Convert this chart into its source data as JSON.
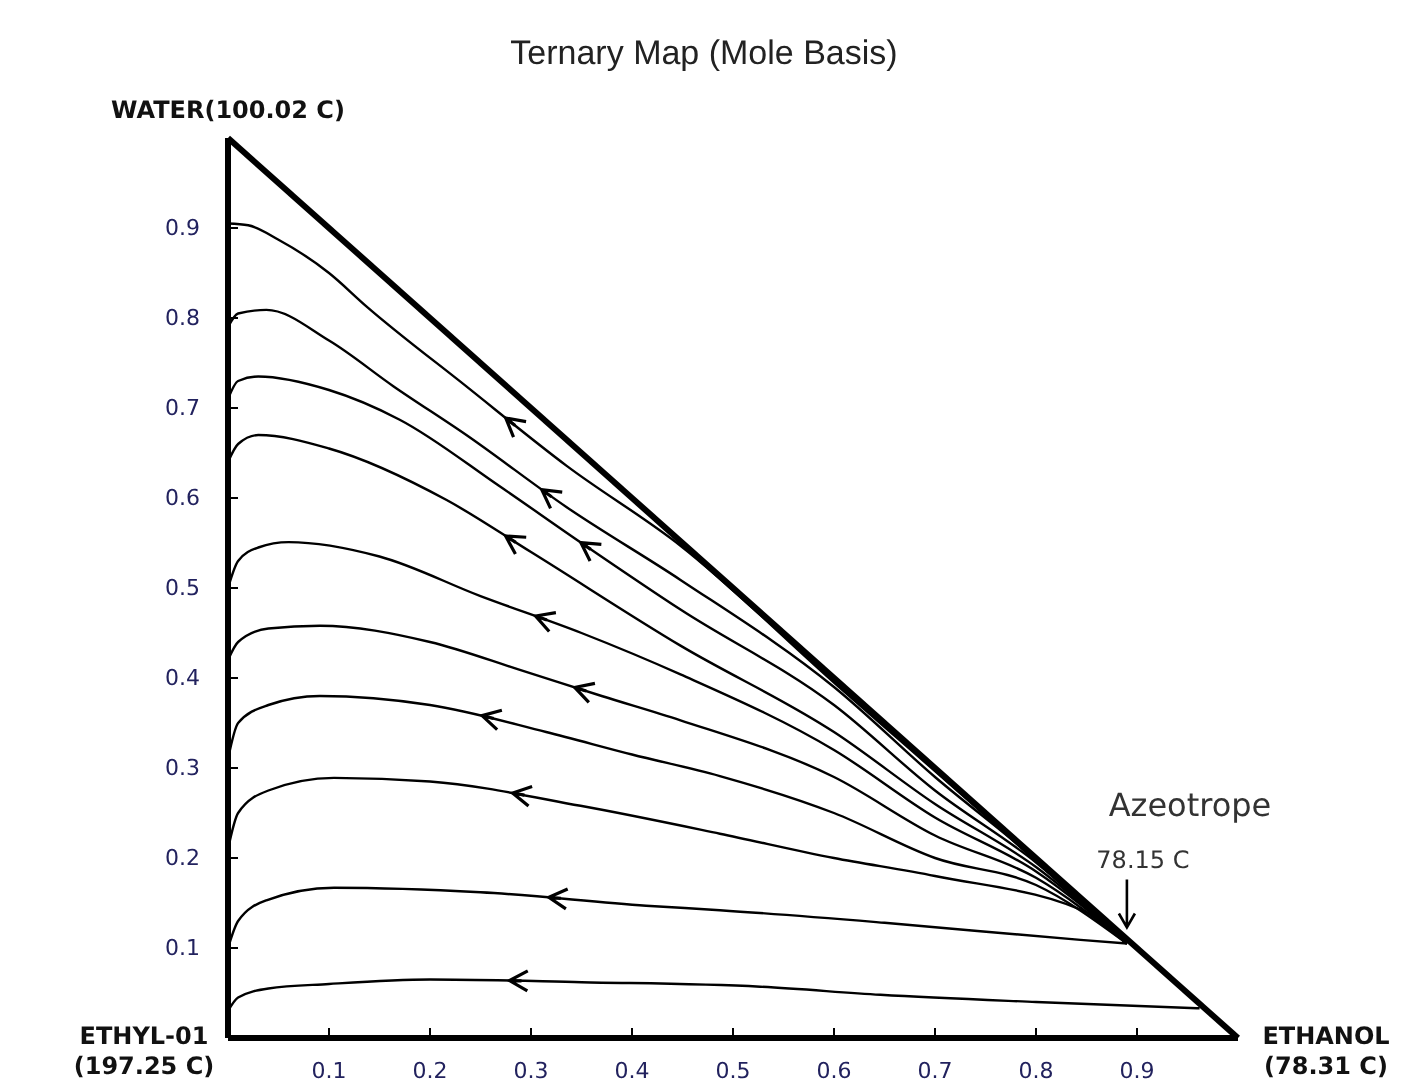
{
  "chart_data": {
    "type": "line",
    "title": "Ternary Map (Mole Basis)",
    "xlim": [
      0,
      1
    ],
    "ylim": [
      0,
      1
    ],
    "xticks": [
      0.1,
      0.2,
      0.3,
      0.4,
      0.5,
      0.6,
      0.7,
      0.8,
      0.9
    ],
    "yticks": [
      0.1,
      0.2,
      0.3,
      0.4,
      0.5,
      0.6,
      0.7,
      0.8,
      0.9
    ],
    "grid": false,
    "annotations": [
      "WATER(100.02 C)",
      "ETHYL-01\n(197.25 C)",
      "ETHANOL\n(78.31 C)",
      "Azeotrope",
      {
        "text": "78.15 C",
        "x": 0.89,
        "y": 0.105
      }
    ],
    "series": [
      {
        "color": "#000000",
        "x": [
          0,
          0.02,
          0.05,
          0.1,
          0.137,
          0.236,
          0.335,
          0.448,
          0.6,
          0.75,
          0.89
        ],
        "values": [
          0.905,
          0.903,
          0.887,
          0.85,
          0.813,
          0.724,
          0.636,
          0.547,
          0.395,
          0.247,
          0.105
        ]
      },
      {
        "color": "#000000",
        "x": [
          0,
          0.01,
          0.038,
          0.1,
          0.164,
          0.236,
          0.335,
          0.448,
          0.6,
          0.7,
          0.8,
          0.89
        ],
        "values": [
          0.79,
          0.805,
          0.809,
          0.775,
          0.724,
          0.67,
          0.59,
          0.509,
          0.39,
          0.29,
          0.198,
          0.105
        ]
      },
      {
        "color": "#000000",
        "x": [
          0,
          0.01,
          0.03,
          0.1,
          0.17,
          0.269,
          0.35,
          0.448,
          0.6,
          0.7,
          0.8,
          0.89
        ],
        "values": [
          0.71,
          0.73,
          0.735,
          0.72,
          0.687,
          0.613,
          0.55,
          0.476,
          0.37,
          0.275,
          0.195,
          0.105
        ]
      },
      {
        "color": "#000000",
        "x": [
          0,
          0.01,
          0.03,
          0.1,
          0.216,
          0.3,
          0.448,
          0.6,
          0.7,
          0.8,
          0.89
        ],
        "values": [
          0.64,
          0.66,
          0.67,
          0.655,
          0.598,
          0.54,
          0.436,
          0.34,
          0.26,
          0.19,
          0.105
        ]
      },
      {
        "color": "#000000",
        "x": [
          0,
          0.01,
          0.03,
          0.06,
          0.15,
          0.25,
          0.35,
          0.448,
          0.6,
          0.7,
          0.8,
          0.89
        ],
        "values": [
          0.5,
          0.53,
          0.545,
          0.551,
          0.535,
          0.491,
          0.45,
          0.404,
          0.32,
          0.245,
          0.185,
          0.105
        ]
      },
      {
        "color": "#000000",
        "x": [
          0,
          0.01,
          0.04,
          0.091,
          0.2,
          0.289,
          0.37,
          0.448,
          0.6,
          0.7,
          0.8,
          0.89
        ],
        "values": [
          0.42,
          0.44,
          0.455,
          0.458,
          0.44,
          0.409,
          0.38,
          0.353,
          0.29,
          0.225,
          0.178,
          0.105
        ]
      },
      {
        "color": "#000000",
        "x": [
          0,
          0.01,
          0.04,
          0.091,
          0.2,
          0.315,
          0.4,
          0.487,
          0.6,
          0.7,
          0.8,
          0.89
        ],
        "values": [
          0.31,
          0.35,
          0.37,
          0.38,
          0.37,
          0.34,
          0.315,
          0.291,
          0.25,
          0.2,
          0.17,
          0.105
        ]
      },
      {
        "color": "#000000",
        "x": [
          0,
          0.01,
          0.04,
          0.105,
          0.2,
          0.349,
          0.487,
          0.6,
          0.7,
          0.857,
          0.89
        ],
        "values": [
          0.21,
          0.25,
          0.275,
          0.289,
          0.285,
          0.258,
          0.227,
          0.2,
          0.18,
          0.136,
          0.105
        ]
      },
      {
        "color": "#000000",
        "x": [
          0,
          0.01,
          0.038,
          0.105,
          0.25,
          0.414,
          0.487,
          0.65,
          0.844,
          0.89
        ],
        "values": [
          0.1,
          0.13,
          0.153,
          0.167,
          0.162,
          0.147,
          0.142,
          0.128,
          0.109,
          0.105
        ]
      },
      {
        "color": "#000000",
        "x": [
          0,
          0.01,
          0.04,
          0.1,
          0.2,
          0.35,
          0.527,
          0.646,
          0.8,
          0.962
        ],
        "values": [
          0.03,
          0.045,
          0.055,
          0.06,
          0.065,
          0.062,
          0.057,
          0.048,
          0.04,
          0.033
        ]
      }
    ]
  }
}
